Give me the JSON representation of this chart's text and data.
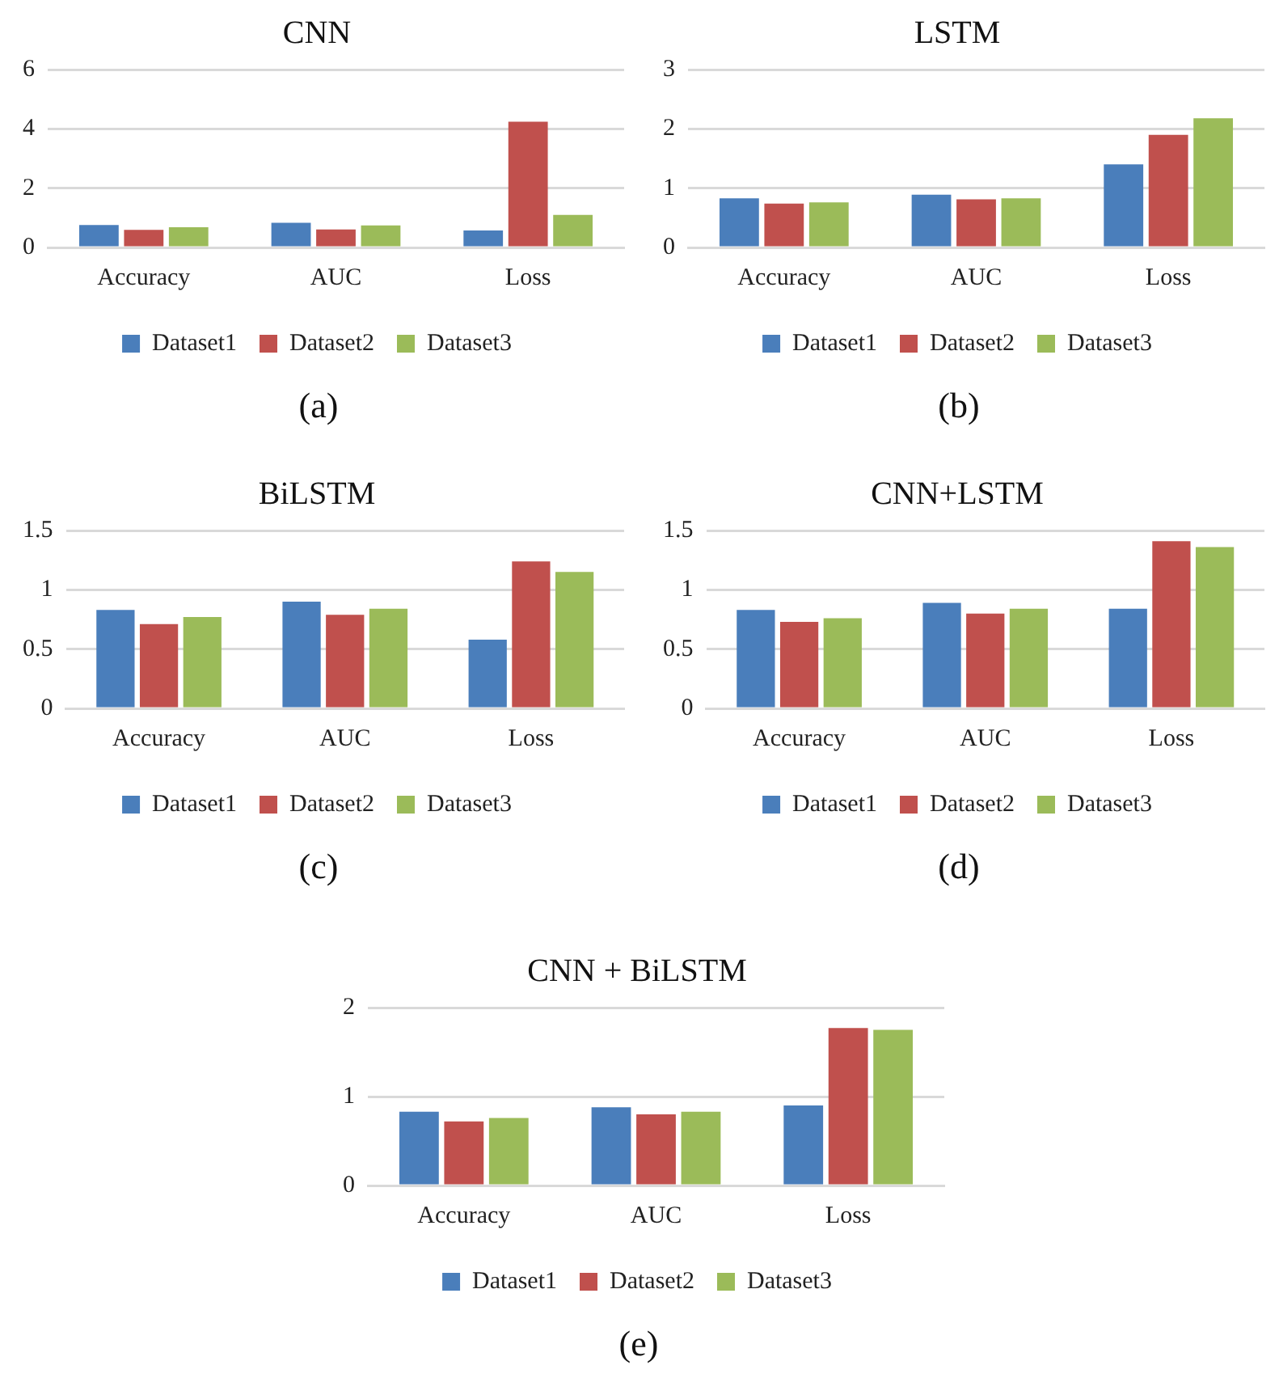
{
  "chart_data": [
    {
      "type": "bar",
      "title": "CNN",
      "categories": [
        "Accuracy",
        "AUC",
        "Loss"
      ],
      "series": [
        {
          "name": "Dataset1",
          "color": "#4a7ebb",
          "values": [
            0.76,
            0.83,
            0.57
          ]
        },
        {
          "name": "Dataset2",
          "color": "#c0504d",
          "values": [
            0.59,
            0.61,
            4.24
          ]
        },
        {
          "name": "Dataset3",
          "color": "#9bbb59",
          "values": [
            0.68,
            0.74,
            1.1
          ]
        }
      ],
      "ylim": [
        0,
        6
      ],
      "yticks": [
        0,
        2,
        4,
        6
      ],
      "grid": "y",
      "legend": "bottom",
      "annotations": [
        "(a)"
      ]
    },
    {
      "type": "bar",
      "title": "LSTM",
      "categories": [
        "Accuracy",
        "AUC",
        "Loss"
      ],
      "series": [
        {
          "name": "Dataset1",
          "color": "#4a7ebb",
          "values": [
            0.83,
            0.89,
            1.4
          ]
        },
        {
          "name": "Dataset2",
          "color": "#c0504d",
          "values": [
            0.74,
            0.81,
            1.9
          ]
        },
        {
          "name": "Dataset3",
          "color": "#9bbb59",
          "values": [
            0.76,
            0.83,
            2.18
          ]
        }
      ],
      "ylim": [
        0,
        3
      ],
      "yticks": [
        0,
        1,
        2,
        3
      ],
      "grid": "y",
      "legend": "bottom",
      "annotations": [
        "(b)"
      ]
    },
    {
      "type": "bar",
      "title": "BiLSTM",
      "categories": [
        "Accuracy",
        "AUC",
        "Loss"
      ],
      "series": [
        {
          "name": "Dataset1",
          "color": "#4a7ebb",
          "values": [
            0.83,
            0.9,
            0.58
          ]
        },
        {
          "name": "Dataset2",
          "color": "#c0504d",
          "values": [
            0.71,
            0.79,
            1.24
          ]
        },
        {
          "name": "Dataset3",
          "color": "#9bbb59",
          "values": [
            0.77,
            0.84,
            1.15
          ]
        }
      ],
      "ylim": [
        0,
        1.5
      ],
      "yticks": [
        0,
        0.5,
        1,
        1.5
      ],
      "grid": "y",
      "legend": "bottom",
      "annotations": [
        "(c)"
      ]
    },
    {
      "type": "bar",
      "title": "CNN+LSTM",
      "categories": [
        "Accuracy",
        "AUC",
        "Loss"
      ],
      "series": [
        {
          "name": "Dataset1",
          "color": "#4a7ebb",
          "values": [
            0.83,
            0.89,
            0.84
          ]
        },
        {
          "name": "Dataset2",
          "color": "#c0504d",
          "values": [
            0.73,
            0.8,
            1.41
          ]
        },
        {
          "name": "Dataset3",
          "color": "#9bbb59",
          "values": [
            0.76,
            0.84,
            1.36
          ]
        }
      ],
      "ylim": [
        0,
        1.5
      ],
      "yticks": [
        0,
        0.5,
        1,
        1.5
      ],
      "grid": "y",
      "legend": "bottom",
      "annotations": [
        "(d)"
      ]
    },
    {
      "type": "bar",
      "title": "CNN + BiLSTM",
      "categories": [
        "Accuracy",
        "AUC",
        "Loss"
      ],
      "series": [
        {
          "name": "Dataset1",
          "color": "#4a7ebb",
          "values": [
            0.83,
            0.88,
            0.9
          ]
        },
        {
          "name": "Dataset2",
          "color": "#c0504d",
          "values": [
            0.72,
            0.8,
            1.77
          ]
        },
        {
          "name": "Dataset3",
          "color": "#9bbb59",
          "values": [
            0.76,
            0.83,
            1.75
          ]
        }
      ],
      "ylim": [
        0,
        2
      ],
      "yticks": [
        0,
        1,
        2
      ],
      "grid": "y",
      "legend": "bottom",
      "annotations": [
        "(e)"
      ]
    }
  ]
}
